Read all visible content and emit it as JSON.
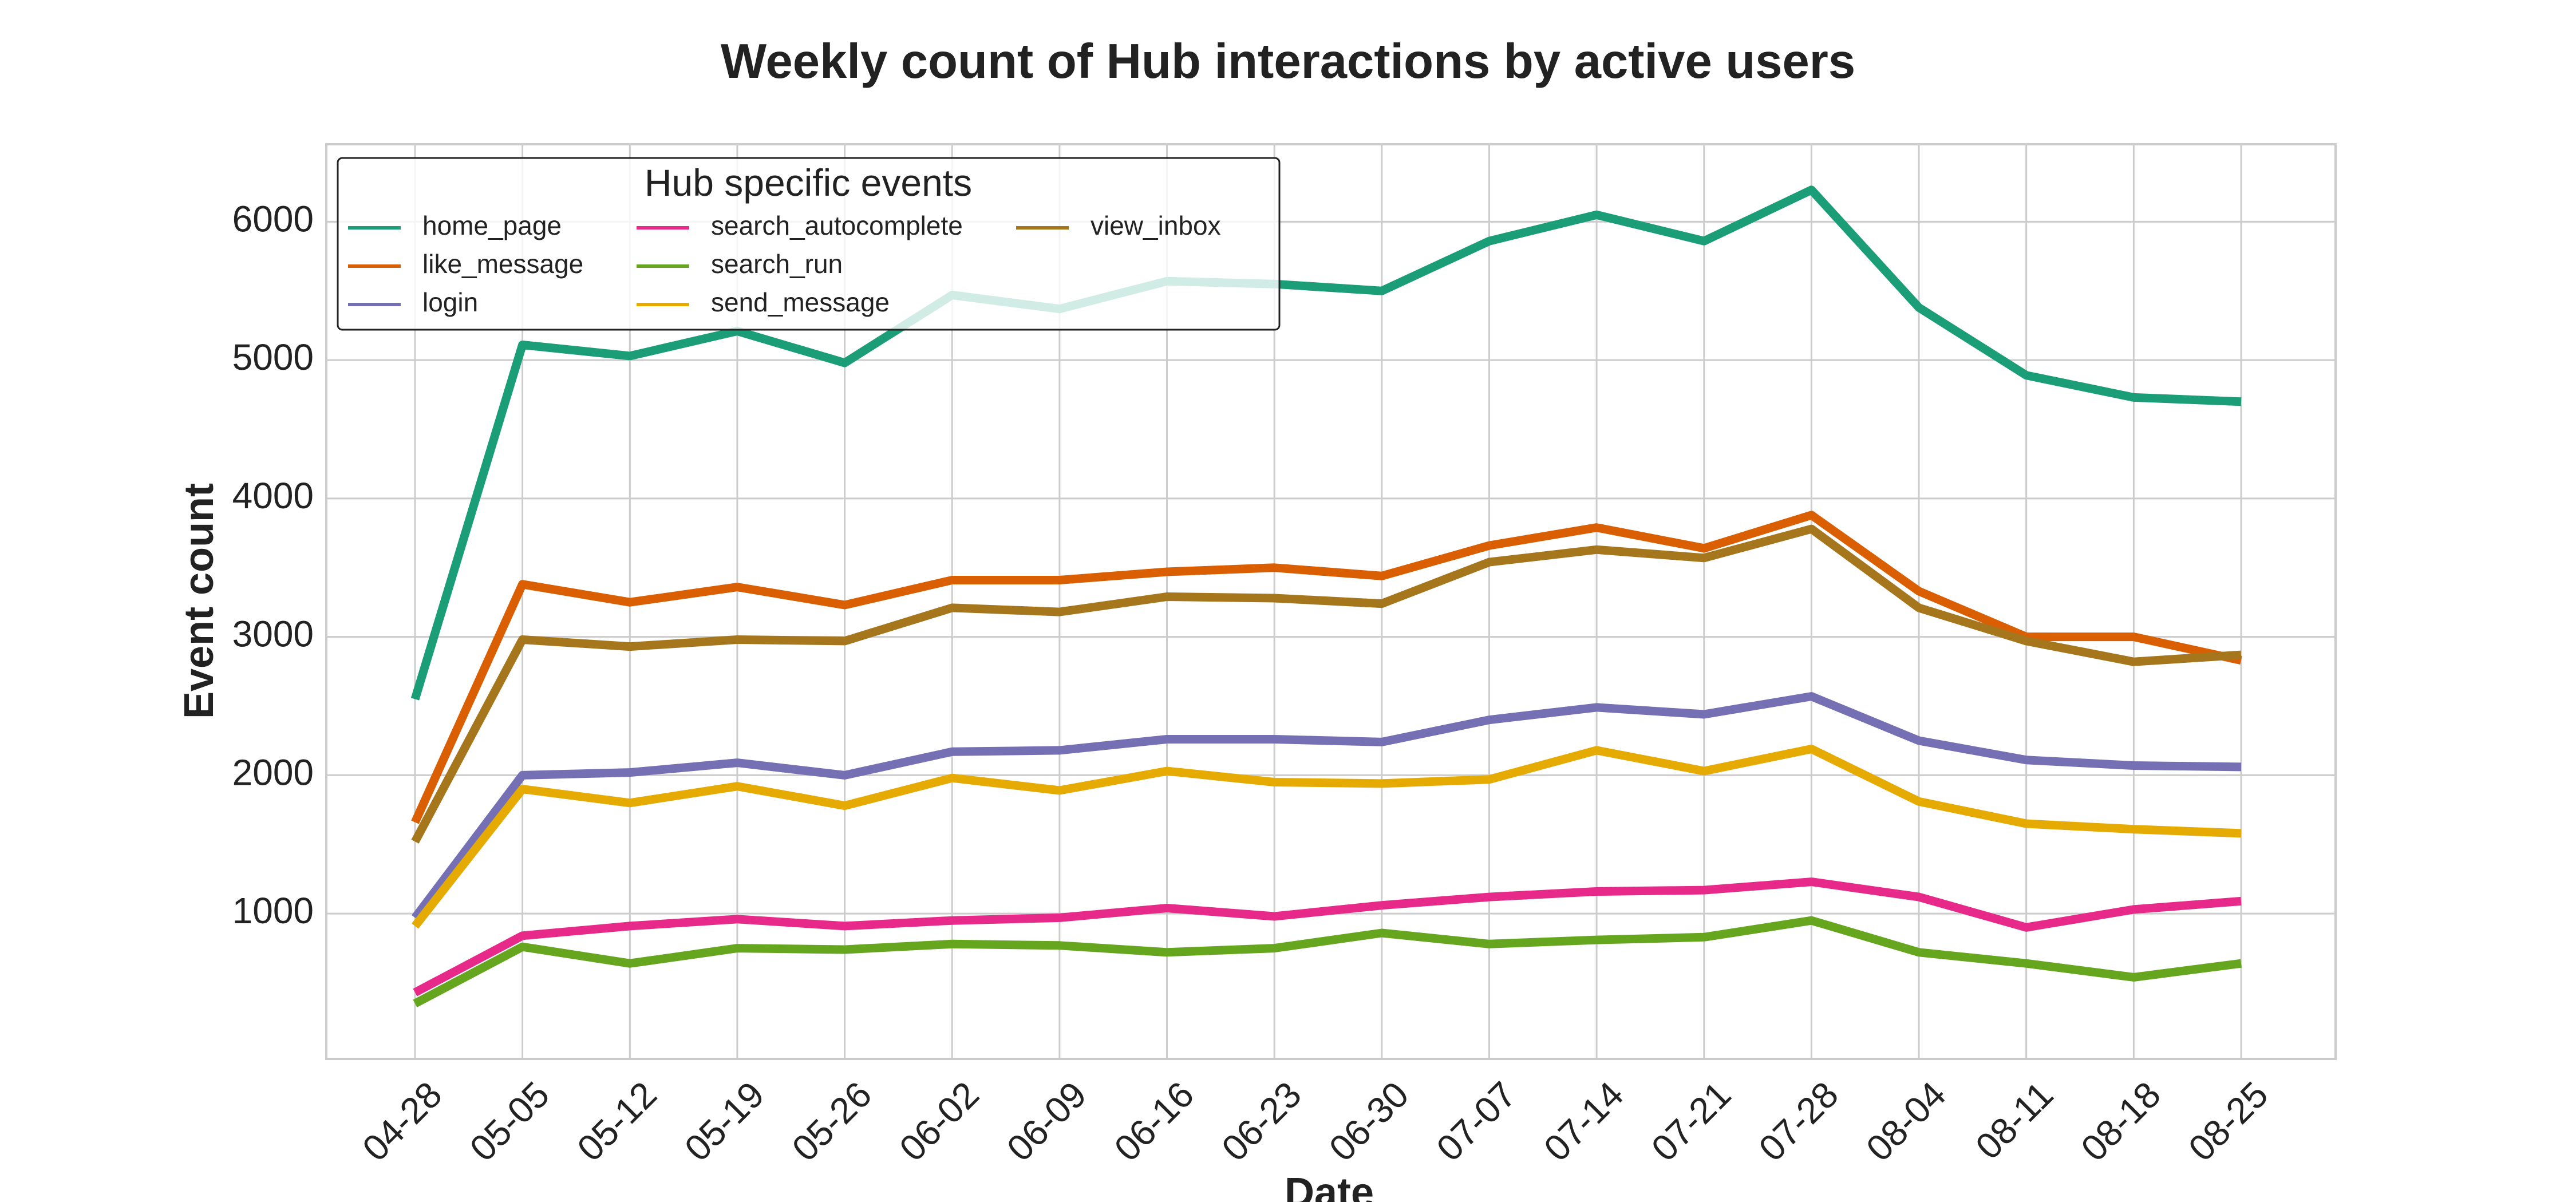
{
  "chart_data": {
    "type": "line",
    "title": "Weekly count of Hub interactions by active users",
    "xlabel": "Date",
    "ylabel": "Event count",
    "categories": [
      "04-28",
      "05-05",
      "05-12",
      "05-19",
      "05-26",
      "06-02",
      "06-09",
      "06-16",
      "06-23",
      "06-30",
      "07-07",
      "07-14",
      "07-21",
      "07-28",
      "08-04",
      "08-11",
      "08-18",
      "08-25"
    ],
    "yticks": [
      1000,
      2000,
      3000,
      4000,
      5000,
      6000
    ],
    "ylim": [
      -50,
      6560
    ],
    "grid": true,
    "legend": {
      "title": "Hub specific events",
      "placement": "top-left",
      "columns": 3
    },
    "series": [
      {
        "name": "home_page",
        "color": "#1b9e77",
        "values": [
          2550,
          5110,
          5030,
          5210,
          4980,
          5470,
          5370,
          5570,
          5550,
          5500,
          5860,
          6050,
          5860,
          6230,
          5380,
          4890,
          4730,
          4700
        ]
      },
      {
        "name": "like_message",
        "color": "#d95f02",
        "values": [
          1660,
          3380,
          3250,
          3360,
          3230,
          3410,
          3410,
          3470,
          3500,
          3440,
          3660,
          3790,
          3640,
          3880,
          3330,
          3000,
          3000,
          2830
        ]
      },
      {
        "name": "login",
        "color": "#7570b3",
        "values": [
          970,
          2000,
          2020,
          2090,
          2000,
          2170,
          2180,
          2260,
          2260,
          2240,
          2400,
          2490,
          2440,
          2570,
          2250,
          2110,
          2070,
          2060
        ]
      },
      {
        "name": "search_autocomplete",
        "color": "#e7298a",
        "values": [
          430,
          840,
          910,
          960,
          910,
          950,
          970,
          1040,
          980,
          1060,
          1120,
          1160,
          1170,
          1230,
          1120,
          900,
          1030,
          1090
        ]
      },
      {
        "name": "search_run",
        "color": "#66a61e",
        "values": [
          350,
          760,
          640,
          750,
          740,
          780,
          770,
          720,
          750,
          860,
          780,
          810,
          830,
          950,
          720,
          640,
          540,
          640
        ]
      },
      {
        "name": "send_message",
        "color": "#e6ab02",
        "values": [
          910,
          1900,
          1800,
          1920,
          1780,
          1980,
          1890,
          2030,
          1950,
          1940,
          1970,
          2180,
          2030,
          2190,
          1810,
          1650,
          1610,
          1580
        ]
      },
      {
        "name": "view_inbox",
        "color": "#a6761d",
        "values": [
          1520,
          2980,
          2930,
          2980,
          2970,
          3210,
          3180,
          3290,
          3280,
          3240,
          3540,
          3630,
          3570,
          3780,
          3210,
          2970,
          2820,
          2870
        ]
      }
    ]
  }
}
